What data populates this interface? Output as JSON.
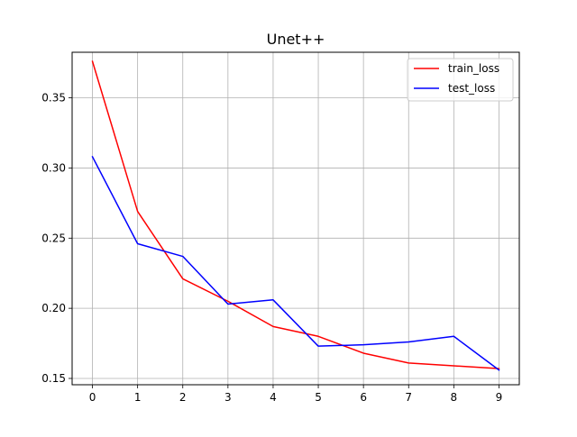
{
  "chart_data": {
    "type": "line",
    "title": "Unet++",
    "xlabel": "",
    "ylabel": "",
    "x": [
      0,
      1,
      2,
      3,
      4,
      5,
      6,
      7,
      8,
      9
    ],
    "xlim": [
      -0.45,
      9.45
    ],
    "ylim": [
      0.1455,
      0.3825
    ],
    "x_ticks": [
      0,
      1,
      2,
      3,
      4,
      5,
      6,
      7,
      8,
      9
    ],
    "y_ticks": [
      0.15,
      0.2,
      0.25,
      0.3,
      0.35
    ],
    "y_tick_labels": [
      "0.15",
      "0.20",
      "0.25",
      "0.30",
      "0.35"
    ],
    "grid": true,
    "legend_position": "top-right",
    "series": [
      {
        "name": "train_loss",
        "color": "#ff0000",
        "values": [
          0.376,
          0.269,
          0.221,
          0.205,
          0.187,
          0.18,
          0.168,
          0.161,
          0.159,
          0.157
        ]
      },
      {
        "name": "test_loss",
        "color": "#0000ff",
        "values": [
          0.308,
          0.246,
          0.237,
          0.203,
          0.206,
          0.173,
          0.174,
          0.176,
          0.18,
          0.156
        ]
      }
    ]
  }
}
